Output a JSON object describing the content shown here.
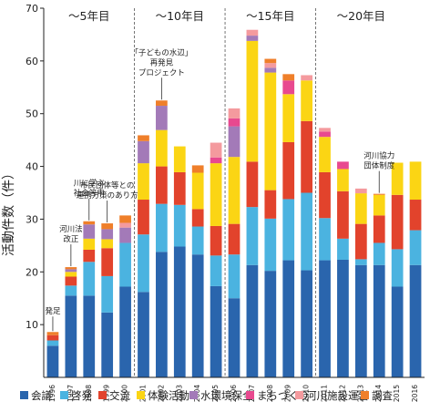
{
  "chart_data": {
    "type": "bar",
    "stacked": true,
    "ylabel": "活動件数（件）",
    "ylim": [
      0,
      70
    ],
    "yticks": [
      10,
      20,
      30,
      40,
      50,
      60,
      70
    ],
    "categories": [
      "1996",
      "1997",
      "1998",
      "1999",
      "2000",
      "2001",
      "2002",
      "2003",
      "2004",
      "2005",
      "2006",
      "2007",
      "2008",
      "2009",
      "2010",
      "2011",
      "2012",
      "2013",
      "2014",
      "2015",
      "2016"
    ],
    "series": [
      {
        "name": "会議",
        "color": "#2a65ad",
        "values": [
          6,
          15.5,
          15.5,
          12.3,
          17.2,
          16.2,
          23.8,
          24.8,
          23.3,
          17.3,
          15,
          21.3,
          20.2,
          22.2,
          20.3,
          22.2,
          22.3,
          21.3,
          21.3,
          17.2,
          21.3
        ]
      },
      {
        "name": "啓発",
        "color": "#4bb3e0",
        "values": [
          1,
          1.9,
          6.4,
          6.9,
          8.3,
          10.9,
          9.1,
          7.9,
          5.3,
          5.8,
          8.3,
          11,
          9.9,
          11.6,
          14.7,
          8,
          4,
          1.1,
          4.2,
          7.1,
          6.6
        ]
      },
      {
        "name": "交流",
        "color": "#e2432c",
        "values": [
          1,
          1.7,
          2.3,
          5.3,
          0,
          6.6,
          7.1,
          6.2,
          3.3,
          5.6,
          5.8,
          8.6,
          5.4,
          10.8,
          13.6,
          8.7,
          9,
          6.7,
          5.2,
          10.3,
          5.8
        ]
      },
      {
        "name": "体験活動",
        "color": "#fbd514",
        "values": [
          0,
          0.9,
          2.1,
          1.7,
          0,
          6.9,
          6.9,
          4.9,
          6.9,
          11.9,
          12.7,
          22.9,
          22.3,
          9.1,
          7.7,
          6.7,
          4.2,
          5.8,
          3.9,
          6.1,
          7.2
        ]
      },
      {
        "name": "水環境保全",
        "color": "#a37ab8",
        "values": [
          0,
          0.5,
          2.7,
          1.9,
          2.9,
          4.2,
          4.6,
          0,
          0,
          0,
          5.8,
          1,
          0.9,
          0,
          0,
          0,
          0,
          0,
          0,
          0,
          0
        ]
      },
      {
        "name": "まちづくり",
        "color": "#e8498f",
        "values": [
          0,
          0,
          0,
          0,
          0,
          0,
          0,
          0,
          0,
          1.1,
          1.5,
          0,
          0,
          2.6,
          0,
          1,
          1.4,
          0,
          0,
          0,
          0
        ]
      },
      {
        "name": "河川施設運営",
        "color": "#f49a9e",
        "values": [
          0,
          0,
          0,
          0,
          0.9,
          0,
          0,
          0,
          0,
          2.8,
          1.9,
          1.1,
          0.9,
          0,
          1,
          0.7,
          0,
          0.9,
          0,
          0,
          0
        ]
      },
      {
        "name": "調査",
        "color": "#ef7f2a",
        "values": [
          0.6,
          0.4,
          0.6,
          1.1,
          1.4,
          1.1,
          1,
          0,
          1.4,
          0,
          0,
          0,
          0.8,
          1.2,
          0,
          0,
          0,
          0,
          0.2,
          0,
          0
        ]
      }
    ],
    "periods": [
      "〜5年目",
      "〜10年目",
      "〜15年目",
      "〜20年目"
    ],
    "annotations": [
      {
        "lines": [
          "発足"
        ],
        "year": "1996"
      },
      {
        "lines": [
          "河川法",
          "改正"
        ],
        "year": "1997"
      },
      {
        "lines": [
          "川に学ぶ",
          "社会答申"
        ],
        "year": "1998"
      },
      {
        "lines": [
          "市民団体等との",
          "連携方策のあり方"
        ],
        "year": "1999"
      },
      {
        "lines": [
          "「子どもの水辺」",
          "再発見",
          "プロジェクト"
        ],
        "year": "2002"
      },
      {
        "lines": [
          "河川協力",
          "団体制度"
        ],
        "year": "2014"
      }
    ]
  }
}
